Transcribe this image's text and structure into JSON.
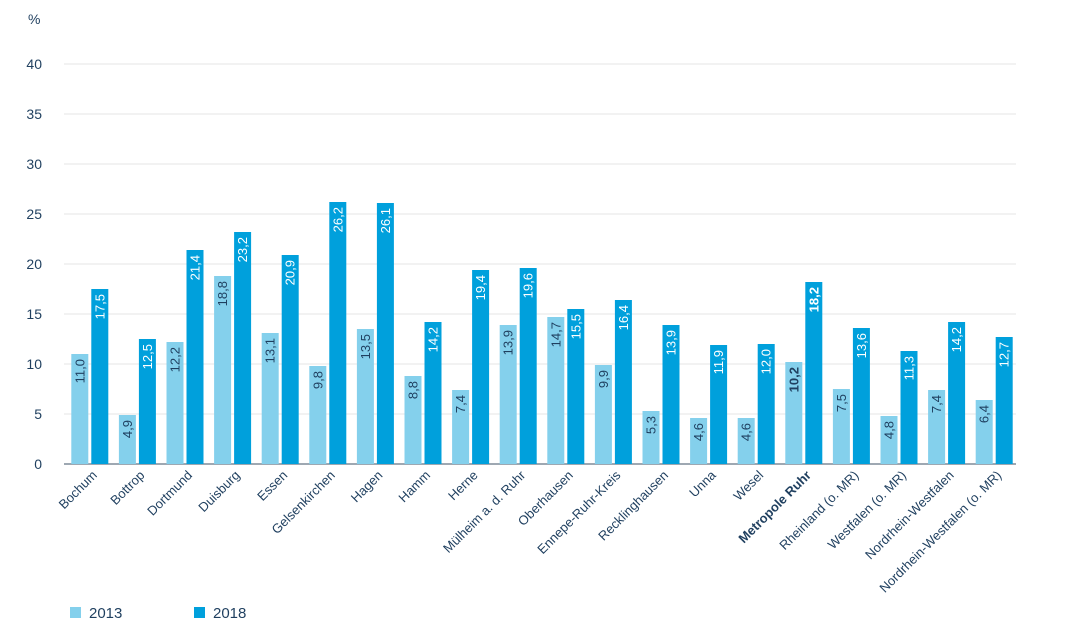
{
  "chart_data": {
    "type": "bar",
    "unit_label": "%",
    "ylim": [
      0,
      40
    ],
    "yticks": [
      0,
      5,
      10,
      15,
      20,
      25,
      30,
      35,
      40
    ],
    "grid": true,
    "legend_position": "bottom-left",
    "highlight_category": "Metropole Ruhr",
    "categories": [
      "Bochum",
      "Bottrop",
      "Dortmund",
      "Duisburg",
      "Essen",
      "Gelsenkirchen",
      "Hagen",
      "Hamm",
      "Herne",
      "Mülheim a. d. Ruhr",
      "Oberhausen",
      "Ennepe-Ruhr-Kreis",
      "Recklinghausen",
      "Unna",
      "Wesel",
      "Metropole Ruhr",
      "Rheinland (o. MR)",
      "Westfalen (o. MR)",
      "Nordrhein-Westfalen",
      "Nordrhein-Westfalen (o. MR)"
    ],
    "series": [
      {
        "name": "2013",
        "color": "#84d0ec",
        "values": [
          11.0,
          4.9,
          12.2,
          18.8,
          13.1,
          9.8,
          13.5,
          8.8,
          7.4,
          13.9,
          14.7,
          9.9,
          5.3,
          4.6,
          4.6,
          10.2,
          7.5,
          4.8,
          7.4,
          6.4
        ],
        "labels": [
          "11,0",
          "4,9",
          "12,2",
          "18,8",
          "13,1",
          "9,8",
          "13,5",
          "8,8",
          "7,4",
          "13,9",
          "14,7",
          "9,9",
          "5,3",
          "4,6",
          "4,6",
          "10,2",
          "7,5",
          "4,8",
          "7,4",
          "6,4"
        ]
      },
      {
        "name": "2018",
        "color": "#00a0dc",
        "values": [
          17.5,
          12.5,
          21.4,
          23.2,
          20.9,
          26.2,
          26.1,
          14.2,
          19.4,
          19.6,
          15.5,
          16.4,
          13.9,
          11.9,
          12.0,
          18.2,
          13.6,
          11.3,
          14.2,
          12.7
        ],
        "labels": [
          "17,5",
          "12,5",
          "21,4",
          "23,2",
          "20,9",
          "26,2",
          "26,1",
          "14,2",
          "19,4",
          "19,6",
          "15,5",
          "16,4",
          "13,9",
          "11,9",
          "12,0",
          "18,2",
          "13,6",
          "11,3",
          "14,2",
          "12,7"
        ]
      }
    ]
  }
}
